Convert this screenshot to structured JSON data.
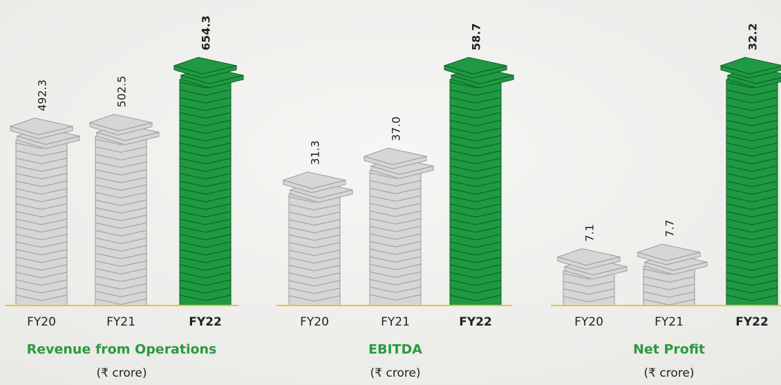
{
  "chart_data": [
    {
      "type": "bar",
      "title": "Revenue from Operations",
      "subtitle": "(₹ crore)",
      "categories": [
        "FY20",
        "FY21",
        "FY22"
      ],
      "values": [
        492.3,
        502.5,
        654.3
      ],
      "value_labels": [
        "492.3",
        "502.5",
        "654.3"
      ],
      "colors": [
        "#d6d6d6",
        "#d6d6d6",
        "#1f9a43"
      ]
    },
    {
      "type": "bar",
      "title": "EBITDA",
      "subtitle": "(₹ crore)",
      "categories": [
        "FY20",
        "FY21",
        "FY22"
      ],
      "values": [
        31.3,
        37.0,
        58.7
      ],
      "value_labels": [
        "31.3",
        "37.0",
        "58.7"
      ],
      "colors": [
        "#d6d6d6",
        "#d6d6d6",
        "#1f9a43"
      ]
    },
    {
      "type": "bar",
      "title": "Net Profit",
      "subtitle": "(₹ crore)",
      "categories": [
        "FY20",
        "FY21",
        "FY22"
      ],
      "values": [
        7.1,
        7.7,
        32.2
      ],
      "value_labels": [
        "7.1",
        "7.7",
        "32.2"
      ],
      "colors": [
        "#d6d6d6",
        "#d6d6d6",
        "#1f9a43"
      ]
    }
  ]
}
